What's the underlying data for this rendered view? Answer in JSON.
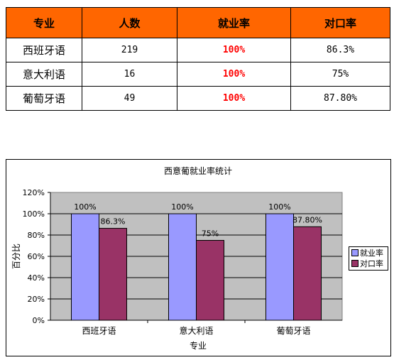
{
  "table": {
    "headers": [
      "专业",
      "人数",
      "就业率",
      "对口率"
    ],
    "rows": [
      {
        "major": "西班牙语",
        "count": "219",
        "employment": "100%",
        "match": "86.3%"
      },
      {
        "major": "意大利语",
        "count": "16",
        "employment": "100%",
        "match": "75%"
      },
      {
        "major": "葡萄牙语",
        "count": "49",
        "employment": "100%",
        "match": "87.80%"
      }
    ]
  },
  "chart_data": {
    "type": "bar",
    "title": "西意葡就业率统计",
    "xlabel": "专业",
    "ylabel": "百分比",
    "categories": [
      "西班牙语",
      "意大利语",
      "葡萄牙语"
    ],
    "ylim": [
      0,
      120
    ],
    "yticks": [
      "0%",
      "20%",
      "40%",
      "60%",
      "80%",
      "100%",
      "120%"
    ],
    "series": [
      {
        "name": "就业率",
        "values": [
          100,
          100,
          100
        ],
        "labels": [
          "100%",
          "100%",
          "100%"
        ],
        "color": "#9999ff"
      },
      {
        "name": "对口率",
        "values": [
          86.3,
          75,
          87.8
        ],
        "labels": [
          "86.3%",
          "75%",
          "87.80%"
        ],
        "color": "#993366"
      }
    ],
    "grid": true,
    "plot_background": "#c0c0c0",
    "legend": "right"
  }
}
